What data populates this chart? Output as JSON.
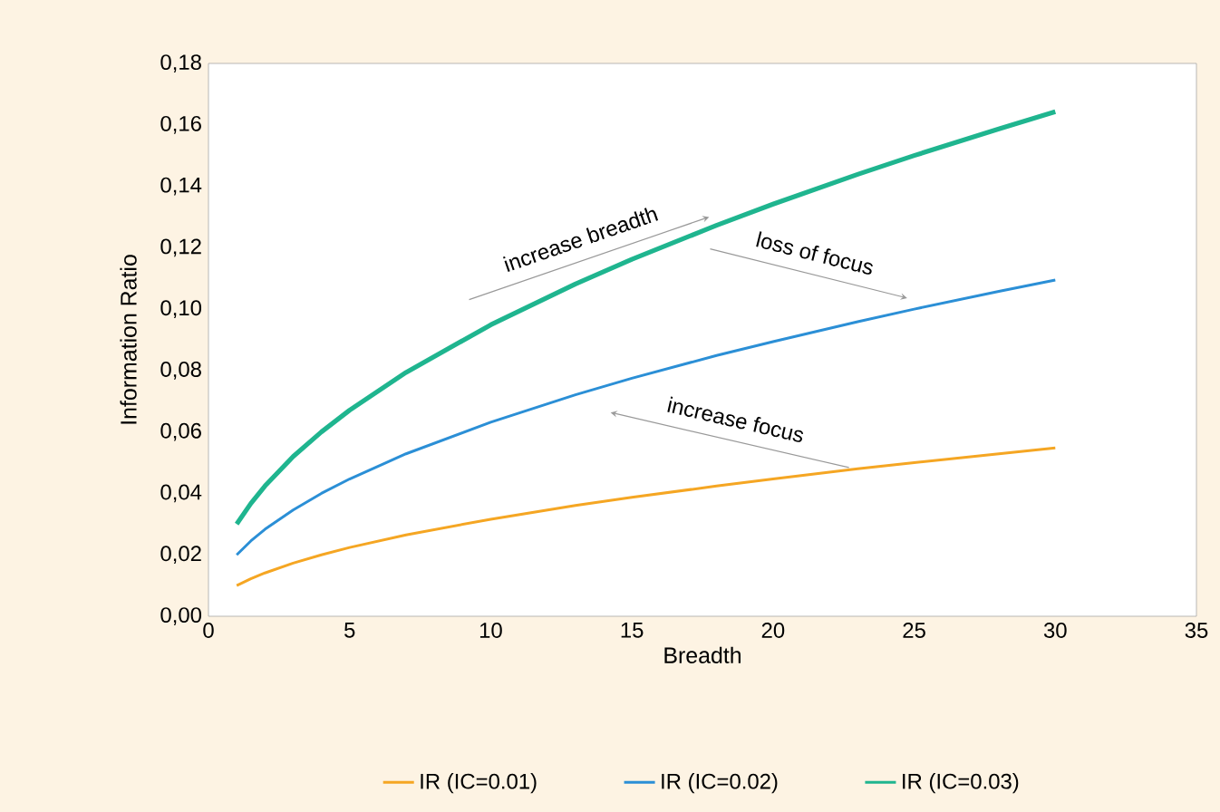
{
  "chart_data": {
    "type": "line",
    "xlabel": "Breadth",
    "ylabel": "Information Ratio",
    "xlim": [
      0,
      35
    ],
    "xticks": [
      0,
      5,
      10,
      15,
      20,
      25,
      30,
      35
    ],
    "ylim": [
      0,
      0.18
    ],
    "yticks": [
      {
        "value": 0,
        "label": "0,00"
      },
      {
        "value": 0.02,
        "label": "0,02"
      },
      {
        "value": 0.04,
        "label": "0,04"
      },
      {
        "value": 0.06,
        "label": "0,06"
      },
      {
        "value": 0.08,
        "label": "0,08"
      },
      {
        "value": 0.1,
        "label": "0,10"
      },
      {
        "value": 0.12,
        "label": "0,12"
      },
      {
        "value": 0.14,
        "label": "0,14"
      },
      {
        "value": 0.16,
        "label": "0,16"
      },
      {
        "value": 0.18,
        "label": "0,18"
      }
    ],
    "x": [
      1,
      1.5,
      2,
      3,
      4,
      5,
      7,
      10,
      13,
      15,
      18,
      20,
      23,
      25,
      28,
      30
    ],
    "series": [
      {
        "name": "IR (IC=0.01)",
        "color": "#f5a623",
        "values": [
          0.01,
          0.0122,
          0.0141,
          0.0173,
          0.02,
          0.0224,
          0.0265,
          0.0316,
          0.0361,
          0.0387,
          0.0424,
          0.0447,
          0.048,
          0.05,
          0.0529,
          0.0548
        ]
      },
      {
        "name": "IR (IC=0.02)",
        "color": "#2b8fd6",
        "values": [
          0.02,
          0.0245,
          0.0283,
          0.0346,
          0.04,
          0.0447,
          0.0529,
          0.0632,
          0.0721,
          0.0775,
          0.0849,
          0.0894,
          0.0959,
          0.1,
          0.1058,
          0.1095
        ]
      },
      {
        "name": "IR (IC=0.03)",
        "color": "#1fb58f",
        "values": [
          0.03,
          0.0367,
          0.0424,
          0.052,
          0.06,
          0.0671,
          0.0794,
          0.0949,
          0.1082,
          0.1162,
          0.1273,
          0.1342,
          0.1439,
          0.15,
          0.1587,
          0.1643
        ]
      }
    ],
    "annotations": [
      "increase breadth",
      "loss of focus",
      "increase focus"
    ],
    "legend": "bottom",
    "grid": false,
    "marker": "none",
    "line_style": "solid"
  }
}
